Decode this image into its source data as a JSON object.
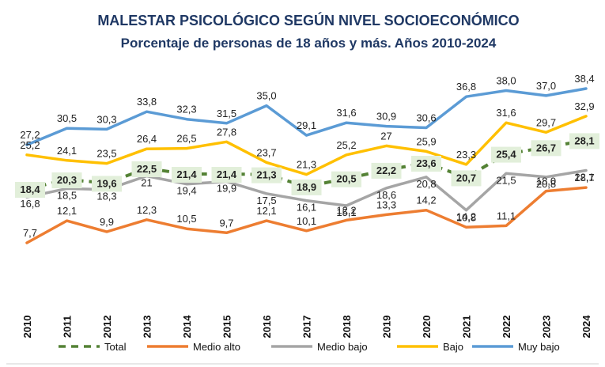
{
  "chart_data": {
    "type": "line",
    "title": "MALESTAR PSICOLÓGICO SEGÚN NIVEL SOCIOECONÓMICO",
    "subtitle": "Porcentaje de personas de 18 años y más. Años 2010-2024",
    "xlabel": "",
    "ylabel": "",
    "ylim": [
      5,
      40
    ],
    "grid": false,
    "legend_position": "bottom",
    "categories": [
      "2010",
      "2011",
      "2012",
      "2013",
      "2014",
      "2015",
      "2016",
      "2017",
      "2018",
      "2019",
      "2020",
      "2021",
      "2022",
      "2023",
      "2024"
    ],
    "series": [
      {
        "name": "Total",
        "color": "#548235",
        "style": "dashed",
        "values": [
          18.4,
          20.3,
          19.6,
          22.5,
          21.4,
          21.4,
          21.3,
          18.9,
          20.5,
          22.2,
          23.6,
          20.7,
          25.4,
          26.7,
          28.1
        ],
        "labels": [
          "18,4",
          "20,3",
          "19,6",
          "22,5",
          "21,4",
          "21,4",
          "21,3",
          "18,9",
          "20,5",
          "22,2",
          "23,6",
          "20,7",
          "25,4",
          "26,7",
          "28,1"
        ]
      },
      {
        "name": "Medio alto",
        "color": "#ED7D31",
        "style": "solid",
        "values": [
          7.7,
          12.1,
          9.9,
          12.3,
          10.5,
          9.7,
          12.1,
          10.1,
          12.2,
          13.3,
          14.2,
          10.8,
          11.1,
          18.0,
          18.7
        ],
        "labels": [
          "7,7",
          "12,1",
          "9,9",
          "12,3",
          "10,5",
          "9,7",
          "12,1",
          "10,1",
          "12,2",
          "13,3",
          "14,2",
          "10,8",
          "11,1",
          "18,0",
          "18,7"
        ]
      },
      {
        "name": "Medio bajo",
        "color": "#A5A5A5",
        "style": "solid",
        "values": [
          16.8,
          18.5,
          18.3,
          21.0,
          19.4,
          19.9,
          17.5,
          16.1,
          15.1,
          18.6,
          20.8,
          14.2,
          21.5,
          20.8,
          22.1
        ],
        "labels": [
          "16,8",
          "18,5",
          "18,3",
          "21",
          "19,4",
          "19,9",
          "17,5",
          "16,1",
          "15,1",
          "18,6",
          "20,8",
          "14,2",
          "21,5",
          "20,8",
          "22,1"
        ]
      },
      {
        "name": "Bajo",
        "color": "#FFC000",
        "style": "solid",
        "values": [
          25.2,
          24.1,
          23.5,
          26.4,
          26.5,
          27.8,
          23.7,
          21.3,
          25.2,
          27.0,
          25.9,
          23.3,
          31.6,
          29.7,
          32.9
        ],
        "labels": [
          "25,2",
          "24,1",
          "23,5",
          "26,4",
          "26,5",
          "27,8",
          "23,7",
          "21,3",
          "25,2",
          "27",
          "25,9",
          "23,3",
          "31,6",
          "29,7",
          "32,9"
        ]
      },
      {
        "name": "Muy bajo",
        "color": "#5B9BD5",
        "style": "solid",
        "values": [
          27.2,
          30.5,
          30.3,
          33.8,
          32.3,
          31.5,
          35.0,
          29.1,
          31.6,
          30.9,
          30.6,
          36.8,
          38.0,
          37.0,
          38.4
        ],
        "labels": [
          "27,2",
          "30,5",
          "30,3",
          "33,8",
          "32,3",
          "31,5",
          "35,0",
          "29,1",
          "31,6",
          "30,9",
          "30,6",
          "36,8",
          "38,0",
          "37,0",
          "38,4"
        ]
      }
    ],
    "legend": [
      "Total",
      "Medio alto",
      "Medio bajo",
      "Bajo",
      "Muy bajo"
    ]
  }
}
